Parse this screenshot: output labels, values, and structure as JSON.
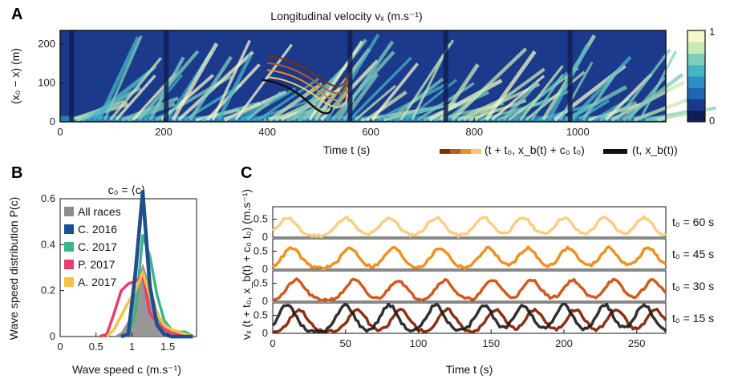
{
  "chart_data": [
    {
      "panel": "A",
      "type": "heatmap",
      "title": "Longitudinal velocity vₓ (m.s⁻¹)",
      "xlabel": "Time t (s)",
      "ylabel": "(x₀ − x) (m)",
      "xlim": [
        0,
        1170
      ],
      "ylim": [
        0,
        235
      ],
      "xticks": [
        0,
        200,
        400,
        600,
        800,
        1000
      ],
      "yticks": [
        0,
        100,
        200
      ],
      "colorbar": {
        "min": 0,
        "max": 1,
        "ticks": [
          "0",
          "1"
        ],
        "colors": [
          "#0f1e54",
          "#1b3a8c",
          "#1f66b0",
          "#2d8fc0",
          "#47b4c6",
          "#7fcdbb",
          "#c7e9b4",
          "#f5f7c8"
        ]
      },
      "legend": [
        {
          "label": "(t + t₀, x_b(t) + c₀ t₀)",
          "colors": [
            "#7a2e0e",
            "#c0571c",
            "#ee8c1e",
            "#f8c770"
          ]
        },
        {
          "label": "(t, x_b(t))",
          "color": "#111111"
        }
      ]
    },
    {
      "panel": "B",
      "type": "line",
      "title": "c₀ = ⟨c⟩",
      "xlabel": "Wave speed c (m.s⁻¹)",
      "ylabel": "Wave speed distribution P(c)",
      "xlim": [
        0,
        1.9
      ],
      "ylim": [
        0,
        0.6
      ],
      "xticks": [
        0,
        0.5,
        1,
        1.5
      ],
      "xtick_labels": [
        "0",
        "0.5",
        "1",
        "1.5"
      ],
      "yticks": [
        0,
        0.2,
        0.4,
        0.6
      ],
      "ytick_labels": [
        "0",
        "0.2",
        "0.4",
        "0.6"
      ],
      "legend_position": "top-left",
      "series": [
        {
          "name": "All races",
          "color": "#8c8c8c",
          "fill": true,
          "x": [
            0.75,
            0.85,
            0.95,
            1.05,
            1.15,
            1.25,
            1.35,
            1.45,
            1.55,
            1.65,
            1.75,
            1.85
          ],
          "y": [
            0.0,
            0.02,
            0.07,
            0.2,
            0.32,
            0.23,
            0.12,
            0.05,
            0.02,
            0.01,
            0.0,
            0.0
          ]
        },
        {
          "name": "C. 2016",
          "color": "#1e4e8c",
          "x": [
            0.85,
            0.95,
            1.05,
            1.15,
            1.25,
            1.35,
            1.45,
            1.55,
            1.65,
            1.75,
            1.85
          ],
          "y": [
            0.0,
            0.01,
            0.28,
            0.63,
            0.22,
            0.05,
            0.01,
            0.0,
            0.0,
            0.0,
            0.0
          ]
        },
        {
          "name": "C. 2017",
          "color": "#3ab58a",
          "x": [
            0.85,
            0.95,
            1.05,
            1.15,
            1.25,
            1.35,
            1.45,
            1.55,
            1.65,
            1.75,
            1.85
          ],
          "y": [
            0.0,
            0.01,
            0.1,
            0.44,
            0.35,
            0.18,
            0.07,
            0.03,
            0.02,
            0.02,
            0.0
          ]
        },
        {
          "name": "P. 2017",
          "color": "#e83e6c",
          "x": [
            0.55,
            0.65,
            0.75,
            0.85,
            0.95,
            1.05,
            1.15,
            1.25,
            1.35,
            1.45,
            1.55,
            1.65,
            1.75,
            1.85
          ],
          "y": [
            0.0,
            0.01,
            0.1,
            0.2,
            0.23,
            0.24,
            0.27,
            0.1,
            0.06,
            0.03,
            0.02,
            0.01,
            0.0,
            0.0
          ]
        },
        {
          "name": "A. 2017",
          "color": "#f5c242",
          "x": [
            0.65,
            0.75,
            0.85,
            0.95,
            1.05,
            1.15,
            1.25,
            1.35,
            1.45,
            1.55,
            1.65,
            1.75,
            1.85
          ],
          "y": [
            0.0,
            0.03,
            0.09,
            0.15,
            0.2,
            0.28,
            0.18,
            0.1,
            0.05,
            0.03,
            0.02,
            0.01,
            0.0
          ]
        }
      ]
    },
    {
      "panel": "C",
      "type": "line",
      "xlabel": "Time t (s)",
      "ylabel": "vₓ (t + t₀, x_b(t) + c₀ t₀) (m.s⁻¹)",
      "xlim": [
        0,
        270
      ],
      "xticks": [
        0,
        50,
        100,
        150,
        200,
        250
      ],
      "ylim": [
        0,
        0.85
      ],
      "yticks": [
        0,
        0.5
      ],
      "ytick_labels": [
        "0",
        "0.5"
      ],
      "wave_peaks_t": [
        10,
        50,
        80,
        112,
        145,
        172,
        200,
        228,
        255
      ],
      "rows": [
        {
          "label": "t₀ = 60 s",
          "color": "#f8cf82",
          "amplitude": 0.5,
          "shift": 0,
          "black": false
        },
        {
          "label": "t₀ = 45 s",
          "color": "#f19020",
          "amplitude": 0.55,
          "shift": 3,
          "black": false
        },
        {
          "label": "t₀ = 30 s",
          "color": "#cf5a1f",
          "amplitude": 0.55,
          "shift": 6,
          "black": false
        },
        {
          "label": "t₀ = 15 s",
          "color": "#8f2f12",
          "amplitude": 0.62,
          "shift": 8,
          "black": true
        }
      ],
      "reference_color": "#1a1a1a"
    }
  ]
}
